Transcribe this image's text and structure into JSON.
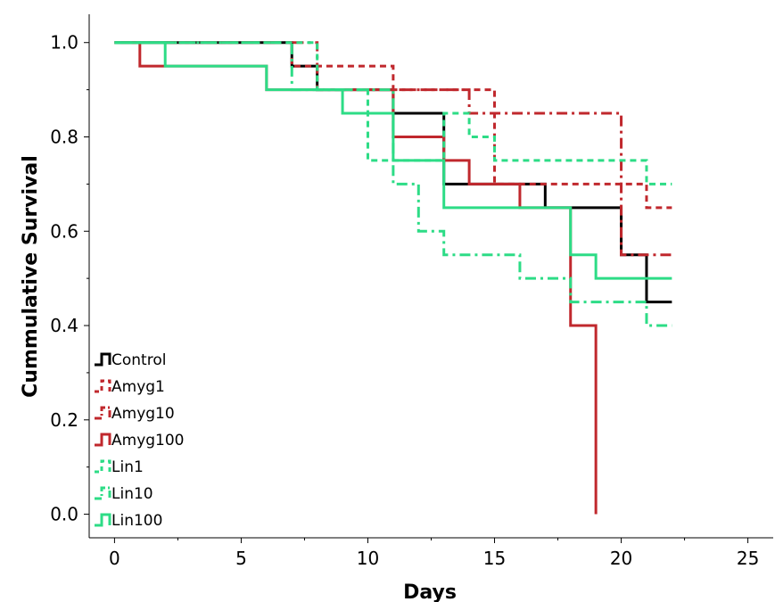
{
  "chart_data": {
    "type": "line",
    "step": true,
    "xlabel": "Days",
    "ylabel": "Cummulative Survival",
    "xlim": [
      -1,
      26
    ],
    "ylim": [
      -0.05,
      1.06
    ],
    "xticks": [
      0,
      5,
      10,
      15,
      20,
      25
    ],
    "xtick_labels": [
      "0",
      "5",
      "10",
      "15",
      "20",
      "25"
    ],
    "yticks": [
      0.0,
      0.2,
      0.4,
      0.6,
      0.8,
      1.0
    ],
    "ytick_labels": [
      "0.0",
      "0.2",
      "0.4",
      "0.6",
      "0.8",
      "1.0"
    ],
    "legend_position": "bottom-left",
    "series": [
      {
        "name": "Control",
        "color": "#000000",
        "dash": "solid",
        "x": [
          0,
          7,
          8,
          11,
          13,
          17,
          20,
          21,
          22
        ],
        "y": [
          1.0,
          0.95,
          0.9,
          0.85,
          0.7,
          0.65,
          0.55,
          0.45,
          0.45
        ]
      },
      {
        "name": "Amyg1",
        "color": "#c0282d",
        "dash": "dash",
        "x": [
          0,
          7,
          11,
          15,
          20,
          21,
          22
        ],
        "y": [
          1.0,
          0.95,
          0.9,
          0.7,
          0.7,
          0.65,
          0.65
        ]
      },
      {
        "name": "Amyg10",
        "color": "#c0282d",
        "dash": "dashdot",
        "x": [
          0,
          8,
          14,
          20,
          22
        ],
        "y": [
          1.0,
          0.9,
          0.85,
          0.55,
          0.55
        ]
      },
      {
        "name": "Amyg100",
        "color": "#c0282d",
        "dash": "solid",
        "x": [
          0,
          1,
          6,
          11,
          13,
          14,
          16,
          18,
          19
        ],
        "y": [
          1.0,
          0.95,
          0.9,
          0.8,
          0.75,
          0.7,
          0.65,
          0.4,
          0.0
        ]
      },
      {
        "name": "Lin1",
        "color": "#2ddc86",
        "dash": "dash",
        "x": [
          0,
          8,
          10,
          13,
          14,
          15,
          21,
          22
        ],
        "y": [
          1.0,
          0.9,
          0.75,
          0.85,
          0.8,
          0.75,
          0.7,
          0.7
        ]
      },
      {
        "name": "Lin10",
        "color": "#2ddc86",
        "dash": "dashdot",
        "x": [
          0,
          7,
          11,
          12,
          13,
          16,
          18,
          20,
          21,
          22
        ],
        "y": [
          1.0,
          0.9,
          0.7,
          0.6,
          0.55,
          0.5,
          0.45,
          0.45,
          0.4,
          0.4
        ]
      },
      {
        "name": "Lin100",
        "color": "#2ddc86",
        "dash": "solid",
        "x": [
          0,
          2,
          6,
          9,
          11,
          13,
          18,
          19,
          22
        ],
        "y": [
          1.0,
          0.95,
          0.9,
          0.85,
          0.75,
          0.65,
          0.55,
          0.5,
          0.5
        ]
      }
    ]
  }
}
